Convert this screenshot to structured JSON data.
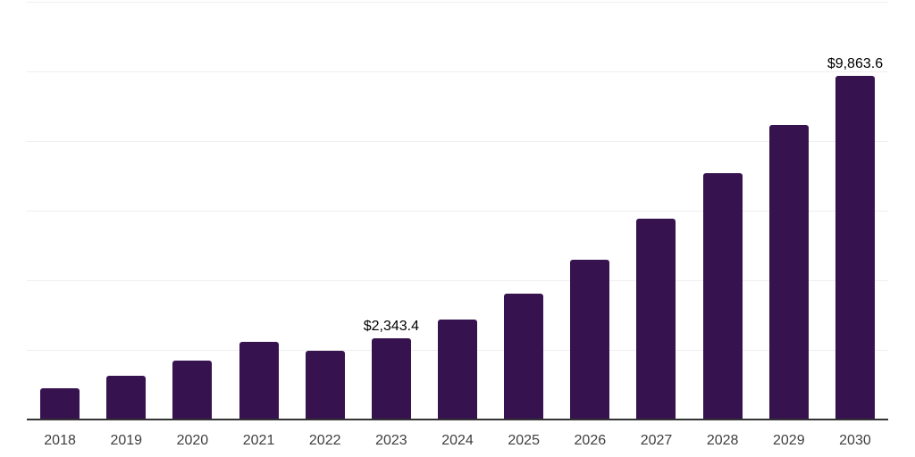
{
  "chart_data": {
    "type": "bar",
    "title": "",
    "xlabel": "",
    "ylabel": "",
    "categories": [
      "2018",
      "2019",
      "2020",
      "2021",
      "2022",
      "2023",
      "2024",
      "2025",
      "2026",
      "2027",
      "2028",
      "2029",
      "2030"
    ],
    "values": [
      900,
      1260,
      1700,
      2240,
      1970,
      2343.4,
      2870,
      3620,
      4600,
      5760,
      7080,
      8470,
      9863.6
    ],
    "data_labels": [
      "",
      "",
      "",
      "",
      "",
      "$2,343.4",
      "",
      "",
      "",
      "",
      "",
      "",
      "$9,863.6"
    ],
    "ylim": [
      0,
      12000
    ],
    "gridline_interval": 2000,
    "grid": true,
    "legend": false,
    "y_axis_tick_labels_visible": false,
    "colors": {
      "bar": "#36124e",
      "gridline": "#efefef",
      "axis_line": "#333333",
      "data_label": "#000000",
      "tick_label": "#3f3f3f",
      "background": "#ffffff"
    }
  }
}
